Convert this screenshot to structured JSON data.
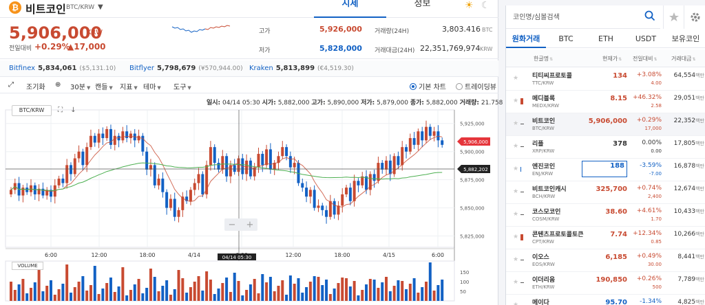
{
  "header": {
    "coin_name": "비트코인",
    "pair": "BTC/KRW",
    "tabs": [
      "시세",
      "정보"
    ]
  },
  "price": {
    "current": "5,906,000",
    "unit": "KRW",
    "change_label": "전일대비",
    "change_pct": "+0.29%",
    "change_amt": "▲17,000",
    "high_label": "고가",
    "high": "5,926,000",
    "low_label": "저가",
    "low": "5,828,000",
    "vol_label": "거래량(24H)",
    "vol": "3,803.416",
    "vol_unit": "BTC",
    "amt_label": "거래대금(24H)",
    "amt": "22,351,769,974",
    "amt_unit": "KRW"
  },
  "exchanges": [
    {
      "name": "Bitfinex",
      "price": "5,834,061",
      "usd": "($5,131.10)"
    },
    {
      "name": "Bitflyer",
      "price": "5,798,679",
      "usd": "(¥570,944.00)"
    },
    {
      "name": "Kraken",
      "price": "5,813,899",
      "usd": "(€4,519.30)"
    }
  ],
  "toolbar": {
    "reset": "조기화",
    "interval": "30분",
    "candle": "캔들",
    "indicator": "지표",
    "theme": "테마",
    "tools": "도구",
    "basic_chart": "기본 차트",
    "tradingview": "트레이딩뷰"
  },
  "chart_info": {
    "date_label": "일시:",
    "date": "04/14 05:30",
    "open_label": "시가:",
    "open": "5,882,000",
    "high_label": "고가:",
    "high": "5,890,000",
    "low_label": "저가:",
    "low": "5,879,000",
    "close_label": "종가:",
    "close": "5,882,000",
    "vol_label": "거래량:",
    "vol": "21.758"
  },
  "chart_pair": "BTC/KRW",
  "volume_label": "VOLUME",
  "chart_data": {
    "type": "candlestick",
    "y_ticks": [
      "5,925,000",
      "5,900,000",
      "5,875,000",
      "5,850,000",
      "5,825,000"
    ],
    "y_tick_values": [
      5925000,
      5900000,
      5875000,
      5850000,
      5825000
    ],
    "x_ticks": [
      "6:00",
      "12:00",
      "18:00",
      "4/14",
      "6:00",
      "12:00",
      "18:00",
      "4/15",
      "6:00"
    ],
    "crosshair_label": "04/14 05:30",
    "last_price_label": "5,906,000",
    "ma_label": "5,882,202",
    "vol_ticks": [
      "150",
      "100",
      "50"
    ],
    "ylim": [
      5818000,
      5934000
    ],
    "closes": [
      5866000,
      5872000,
      5861000,
      5868000,
      5864000,
      5870000,
      5862000,
      5867000,
      5861000,
      5866000,
      5860000,
      5870000,
      5876000,
      5872000,
      5888000,
      5880000,
      5894000,
      5900000,
      5888000,
      5904000,
      5914000,
      5908000,
      5916000,
      5912000,
      5920000,
      5906000,
      5914000,
      5910000,
      5918000,
      5912000,
      5916000,
      5910000,
      5914000,
      5900000,
      5884000,
      5888000,
      5870000,
      5876000,
      5864000,
      5850000,
      5858000,
      5842000,
      5848000,
      5860000,
      5856000,
      5866000,
      5872000,
      5880000,
      5862000,
      5888000,
      5904000,
      5890000,
      5884000,
      5896000,
      5878000,
      5888000,
      5882000,
      5894000,
      5880000,
      5892000,
      5878000,
      5886000,
      5898000,
      5888000,
      5902000,
      5884000,
      5890000,
      5896000,
      5904000,
      5896000,
      5886000,
      5890000,
      5872000,
      5868000,
      5860000,
      5866000,
      5850000,
      5852000,
      5848000,
      5842000,
      5856000,
      5844000,
      5852000,
      5862000,
      5868000,
      5856000,
      5874000,
      5870000,
      5878000,
      5866000,
      5880000,
      5874000,
      5890000,
      5884000,
      5892000,
      5880000,
      5896000,
      5888000,
      5904000,
      5900000,
      5912000,
      5906000,
      5918000,
      5910000,
      5922000,
      5914000,
      5918000,
      5910000,
      5906000
    ]
  },
  "markets": {
    "search_placeholder": "코인명/심볼검색",
    "tabs": [
      "원화거래",
      "BTC",
      "ETH",
      "USDT",
      "보유코인"
    ],
    "cols": [
      "한글명",
      "현재가",
      "전일대비",
      "거래대금"
    ],
    "rows": [
      {
        "name": "티티씨프로토콜",
        "sym": "TTC/KRW",
        "price": "134",
        "pct": "+3.08%",
        "amt": "4.00",
        "vol": "64,554",
        "unit": "백만",
        "dir": "up",
        "ind": "none"
      },
      {
        "name": "메디블록",
        "sym": "MEDX/KRW",
        "price": "8.15",
        "pct": "+46.32%",
        "amt": "2.58",
        "vol": "29,051",
        "unit": "백만",
        "dir": "up",
        "ind": "up"
      },
      {
        "name": "비트코인",
        "sym": "BTC/KRW",
        "price": "5,906,000",
        "pct": "+0.29%",
        "amt": "17,000",
        "vol": "22,352",
        "unit": "백만",
        "dir": "up",
        "ind": "flat"
      },
      {
        "name": "리플",
        "sym": "XRP/KRW",
        "price": "378",
        "pct": "0.00%",
        "amt": "0.00",
        "vol": "17,805",
        "unit": "백만",
        "dir": "flat",
        "ind": "flat"
      },
      {
        "name": "엔진코인",
        "sym": "ENJ/KRW",
        "price": "188",
        "pct": "-3.59%",
        "amt": "-7.00",
        "vol": "16,878",
        "unit": "백만",
        "dir": "down",
        "ind": "down"
      },
      {
        "name": "비트코인캐시",
        "sym": "BCH/KRW",
        "price": "325,700",
        "pct": "+0.74%",
        "amt": "2,400",
        "vol": "12,674",
        "unit": "백만",
        "dir": "up",
        "ind": "flat"
      },
      {
        "name": "코스모코인",
        "sym": "COSM/KRW",
        "price": "38.60",
        "pct": "+4.61%",
        "amt": "1.70",
        "vol": "10,433",
        "unit": "백만",
        "dir": "up",
        "ind": "flat"
      },
      {
        "name": "콘텐츠프로토콜토큰",
        "sym": "CPT/KRW",
        "price": "7.74",
        "pct": "+12.34%",
        "amt": "0.85",
        "vol": "10,266",
        "unit": "백만",
        "dir": "up",
        "ind": "up"
      },
      {
        "name": "이오스",
        "sym": "EOS/KRW",
        "price": "6,185",
        "pct": "+0.49%",
        "amt": "30.00",
        "vol": "8,441",
        "unit": "백만",
        "dir": "up",
        "ind": "flat"
      },
      {
        "name": "이더리움",
        "sym": "ETH/KRW",
        "price": "190,850",
        "pct": "+0.26%",
        "amt": "500",
        "vol": "7,789",
        "unit": "백만",
        "dir": "up",
        "ind": "flat"
      },
      {
        "name": "메이다",
        "sym": "",
        "price": "95.70",
        "pct": "-1.34%",
        "amt": "",
        "vol": "4,825",
        "unit": "백만",
        "dir": "down",
        "ind": "none"
      }
    ]
  }
}
